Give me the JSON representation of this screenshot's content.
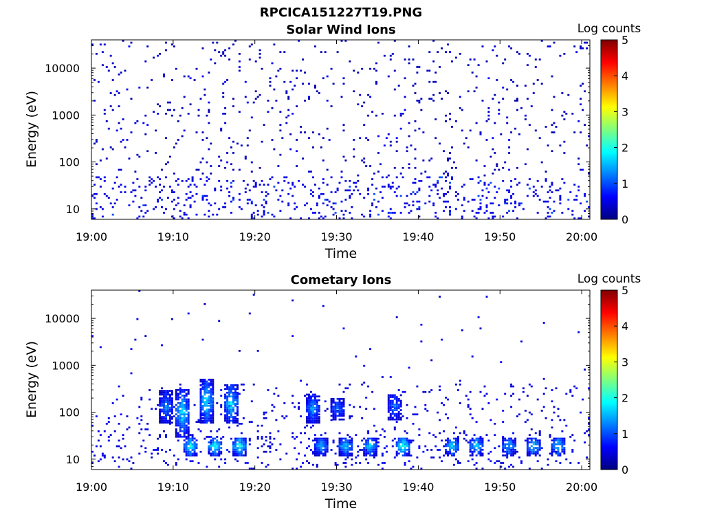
{
  "figure_title": "RPCICA151227T19.PNG",
  "colors": {
    "colormap": [
      "#00007f",
      "#0000ff",
      "#007fff",
      "#00ffff",
      "#7fff7f",
      "#ffff00",
      "#ff7f00",
      "#ff0000",
      "#7f0000"
    ]
  },
  "chart_data": [
    {
      "type": "heatmap",
      "title": "Solar Wind Ions",
      "xlabel": "Time",
      "ylabel": "Energy (eV)",
      "x_range": [
        "19:00",
        "20:01"
      ],
      "x_ticks": [
        "19:00",
        "19:10",
        "19:20",
        "19:30",
        "19:40",
        "19:50",
        "20:00"
      ],
      "y_scale": "log",
      "y_range": [
        6,
        40000
      ],
      "y_ticks": [
        "10",
        "100",
        "1000",
        "10000"
      ],
      "colorbar": {
        "label": "Log counts",
        "range": [
          0,
          5
        ],
        "ticks": [
          "0",
          "1",
          "2",
          "3",
          "4",
          "5"
        ]
      },
      "grid": false,
      "intensity_profile": [
        {
          "energy_band": "6-50 eV",
          "typical_log_counts": 0.4,
          "max_log_counts": 1.0
        },
        {
          "energy_band": "50-40000 eV",
          "typical_log_counts": 0.2,
          "max_log_counts": 0.6
        }
      ]
    },
    {
      "type": "heatmap",
      "title": "Cometary Ions",
      "xlabel": "Time",
      "ylabel": "Energy (eV)",
      "x_range": [
        "19:00",
        "20:01"
      ],
      "x_ticks": [
        "19:00",
        "19:10",
        "19:20",
        "19:30",
        "19:40",
        "19:50",
        "20:00"
      ],
      "y_scale": "log",
      "y_range": [
        6,
        40000
      ],
      "y_ticks": [
        "10",
        "100",
        "1000",
        "10000"
      ],
      "colorbar": {
        "label": "Log counts",
        "range": [
          0,
          5
        ],
        "ticks": [
          "0",
          "1",
          "2",
          "3",
          "4",
          "5"
        ]
      },
      "grid": false,
      "bursts": [
        {
          "time": "19:09",
          "energy_range_ev": [
            60,
            300
          ],
          "max_log_counts": 1.5
        },
        {
          "time": "19:11",
          "energy_range_ev": [
            30,
            300
          ],
          "max_log_counts": 2.0
        },
        {
          "time": "19:12",
          "energy_range_ev": [
            12,
            30
          ],
          "max_log_counts": 2.2
        },
        {
          "time": "19:14",
          "energy_range_ev": [
            60,
            500
          ],
          "max_log_counts": 2.0
        },
        {
          "time": "19:15",
          "energy_range_ev": [
            12,
            30
          ],
          "max_log_counts": 2.3
        },
        {
          "time": "19:17",
          "energy_range_ev": [
            60,
            400
          ],
          "max_log_counts": 2.0
        },
        {
          "time": "19:18",
          "energy_range_ev": [
            12,
            30
          ],
          "max_log_counts": 2.3
        },
        {
          "time": "19:27",
          "energy_range_ev": [
            60,
            250
          ],
          "max_log_counts": 1.6
        },
        {
          "time": "19:28",
          "energy_range_ev": [
            12,
            30
          ],
          "max_log_counts": 1.7
        },
        {
          "time": "19:30",
          "energy_range_ev": [
            70,
            200
          ],
          "max_log_counts": 1.5
        },
        {
          "time": "19:31",
          "energy_range_ev": [
            12,
            30
          ],
          "max_log_counts": 2.0
        },
        {
          "time": "19:34",
          "energy_range_ev": [
            12,
            30
          ],
          "max_log_counts": 2.0
        },
        {
          "time": "19:37",
          "energy_range_ev": [
            70,
            250
          ],
          "max_log_counts": 1.4
        },
        {
          "time": "19:38",
          "energy_range_ev": [
            12,
            30
          ],
          "max_log_counts": 2.5
        },
        {
          "time": "19:44",
          "energy_range_ev": [
            12,
            30
          ],
          "max_log_counts": 2.0
        },
        {
          "time": "19:47",
          "energy_range_ev": [
            12,
            30
          ],
          "max_log_counts": 2.0
        },
        {
          "time": "19:51",
          "energy_range_ev": [
            12,
            30
          ],
          "max_log_counts": 1.8
        },
        {
          "time": "19:54",
          "energy_range_ev": [
            12,
            30
          ],
          "max_log_counts": 2.0
        },
        {
          "time": "19:57",
          "energy_range_ev": [
            12,
            30
          ],
          "max_log_counts": 2.0
        }
      ]
    }
  ]
}
